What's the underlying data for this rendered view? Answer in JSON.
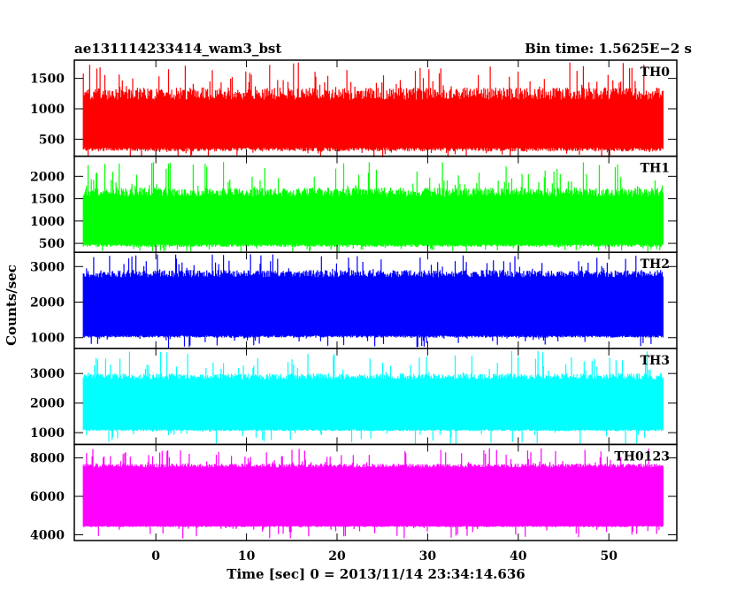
{
  "chart_data": {
    "type": "line",
    "title": "ae131114233414_wam3_bst",
    "subtitle": "Bin time: 1.5625E−2 s",
    "xlabel": "Time [sec] 0 = 2013/11/14 23:34:14.636",
    "ylabel": "Counts/sec",
    "xlim": [
      -9,
      57.5
    ],
    "x_range_data": [
      -8,
      56
    ],
    "x_ticks": [
      0,
      10,
      20,
      30,
      40,
      50
    ],
    "grid": false,
    "panels": [
      {
        "name": "TH0",
        "color": "#ff0000",
        "ylim": [
          220,
          1800
        ],
        "y_ticks": [
          500,
          1000,
          1500
        ],
        "band": {
          "base_low": 300,
          "base_high": 1350,
          "spike_low": 200,
          "spike_high": 1760
        }
      },
      {
        "name": "TH1",
        "color": "#00ff00",
        "ylim": [
          300,
          2450
        ],
        "y_ticks": [
          500,
          1000,
          1500,
          2000
        ],
        "band": {
          "base_low": 420,
          "base_high": 1750,
          "spike_low": 300,
          "spike_high": 2330
        }
      },
      {
        "name": "TH2",
        "color": "#0000ff",
        "ylim": [
          700,
          3400
        ],
        "y_ticks": [
          1000,
          2000,
          3000
        ],
        "band": {
          "base_low": 1000,
          "base_high": 2900,
          "spike_low": 700,
          "spike_high": 3350
        }
      },
      {
        "name": "TH3",
        "color": "#00ffff",
        "ylim": [
          600,
          3850
        ],
        "y_ticks": [
          1000,
          2000,
          3000
        ],
        "band": {
          "base_low": 1050,
          "base_high": 3000,
          "spike_low": 600,
          "spike_high": 3800
        }
      },
      {
        "name": "TH0123",
        "color": "#ff00ff",
        "ylim": [
          3700,
          8700
        ],
        "y_ticks": [
          4000,
          6000,
          8000
        ],
        "band": {
          "base_low": 4400,
          "base_high": 7700,
          "spike_low": 3800,
          "spike_high": 8500
        }
      }
    ]
  }
}
